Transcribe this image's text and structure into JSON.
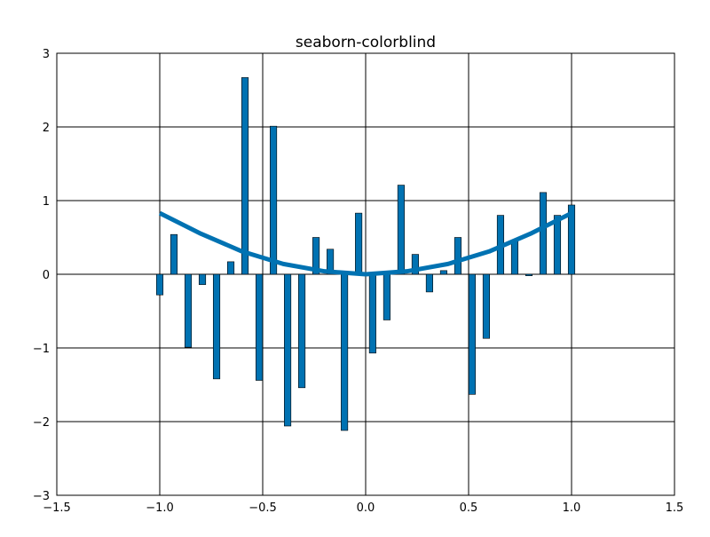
{
  "chart_data": {
    "type": "bar",
    "title": "seaborn-colorblind",
    "xlabel": "",
    "ylabel": "",
    "xlim": [
      -1.5,
      1.5
    ],
    "ylim": [
      -3,
      3
    ],
    "xticks": [
      -1.5,
      -1.0,
      -0.5,
      0.0,
      0.5,
      1.0,
      1.5
    ],
    "yticks": [
      -3,
      -2,
      -1,
      0,
      1,
      2,
      3
    ],
    "xtick_labels": [
      "−1.5",
      "−1.0",
      "−0.5",
      "0.0",
      "0.5",
      "1.0",
      "1.5"
    ],
    "ytick_labels": [
      "−3",
      "−2",
      "−1",
      "0",
      "1",
      "2",
      "3"
    ],
    "grid": true,
    "bar_color": "#0072b2",
    "bar_edge_color": "#000000",
    "line_color": "#0072b2",
    "series": [
      {
        "kind": "bar",
        "x": [
          -1.0,
          -0.931,
          -0.862,
          -0.793,
          -0.724,
          -0.655,
          -0.586,
          -0.517,
          -0.448,
          -0.379,
          -0.31,
          -0.241,
          -0.172,
          -0.103,
          -0.034,
          0.034,
          0.103,
          0.172,
          0.241,
          0.31,
          0.379,
          0.448,
          0.517,
          0.586,
          0.655,
          0.724,
          0.793,
          0.862,
          0.931,
          1.0
        ],
        "values": [
          -0.28,
          0.54,
          -0.99,
          -0.14,
          -1.42,
          0.17,
          2.67,
          -1.44,
          2.01,
          -2.06,
          -1.54,
          0.5,
          0.34,
          -2.12,
          0.83,
          -1.07,
          -0.62,
          1.21,
          0.27,
          -0.24,
          0.05,
          0.5,
          -1.63,
          -0.87,
          0.8,
          0.46,
          -0.02,
          1.11,
          0.8,
          0.94
        ]
      },
      {
        "kind": "line",
        "x": [
          -1.0,
          -0.8,
          -0.6,
          -0.4,
          -0.2,
          0.0,
          0.2,
          0.4,
          0.6,
          0.8,
          1.0
        ],
        "values": [
          0.83,
          0.55,
          0.31,
          0.14,
          0.04,
          0.0,
          0.04,
          0.14,
          0.31,
          0.55,
          0.83
        ]
      }
    ]
  }
}
